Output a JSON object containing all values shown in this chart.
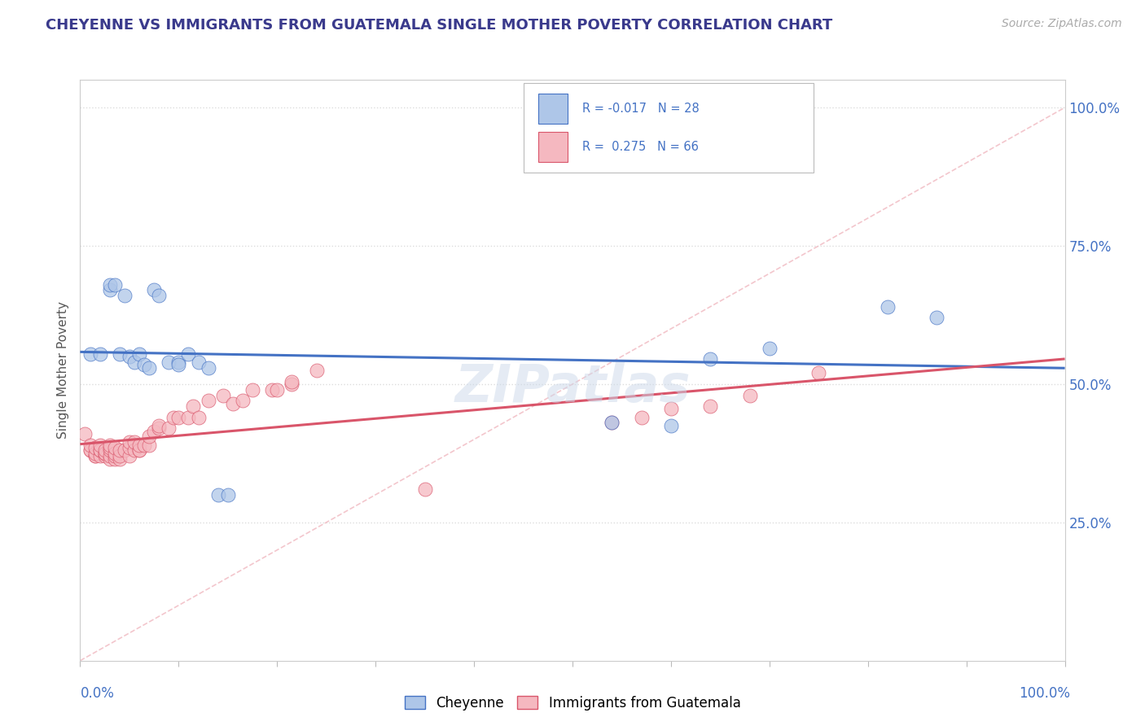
{
  "title": "CHEYENNE VS IMMIGRANTS FROM GUATEMALA SINGLE MOTHER POVERTY CORRELATION CHART",
  "source_text": "Source: ZipAtlas.com",
  "ylabel": "Single Mother Poverty",
  "legend_label1": "Cheyenne",
  "legend_label2": "Immigrants from Guatemala",
  "R1": -0.017,
  "N1": 28,
  "R2": 0.275,
  "N2": 66,
  "color1": "#aec6e8",
  "color2": "#f5b8c0",
  "line1_color": "#4472c4",
  "line2_color": "#d9556a",
  "diag_color": "#f0b8c0",
  "background_color": "#ffffff",
  "grid_color": "#dddddd",
  "watermark": "ZIPatlas",
  "title_color": "#3a3a8c",
  "axis_label_color": "#4472c4",
  "cheyenne_x": [
    0.01,
    0.02,
    0.03,
    0.03,
    0.035,
    0.04,
    0.045,
    0.05,
    0.055,
    0.06,
    0.065,
    0.07,
    0.075,
    0.08,
    0.09,
    0.1,
    0.1,
    0.11,
    0.12,
    0.13,
    0.14,
    0.15,
    0.54,
    0.6,
    0.64,
    0.7,
    0.82,
    0.87
  ],
  "cheyenne_y": [
    0.555,
    0.555,
    0.67,
    0.68,
    0.68,
    0.555,
    0.66,
    0.55,
    0.54,
    0.555,
    0.535,
    0.53,
    0.67,
    0.66,
    0.54,
    0.54,
    0.535,
    0.555,
    0.54,
    0.53,
    0.3,
    0.3,
    0.43,
    0.425,
    0.545,
    0.565,
    0.64,
    0.62
  ],
  "guatemala_x": [
    0.005,
    0.01,
    0.01,
    0.01,
    0.015,
    0.015,
    0.015,
    0.015,
    0.02,
    0.02,
    0.02,
    0.02,
    0.025,
    0.025,
    0.025,
    0.025,
    0.03,
    0.03,
    0.03,
    0.03,
    0.03,
    0.035,
    0.035,
    0.035,
    0.035,
    0.04,
    0.04,
    0.04,
    0.045,
    0.05,
    0.05,
    0.05,
    0.055,
    0.055,
    0.06,
    0.06,
    0.06,
    0.065,
    0.07,
    0.07,
    0.075,
    0.08,
    0.08,
    0.09,
    0.095,
    0.1,
    0.11,
    0.115,
    0.12,
    0.13,
    0.145,
    0.155,
    0.165,
    0.175,
    0.195,
    0.2,
    0.215,
    0.215,
    0.24,
    0.35,
    0.54,
    0.57,
    0.6,
    0.64,
    0.68,
    0.75
  ],
  "guatemala_y": [
    0.41,
    0.38,
    0.38,
    0.39,
    0.37,
    0.37,
    0.375,
    0.385,
    0.37,
    0.38,
    0.38,
    0.39,
    0.37,
    0.375,
    0.375,
    0.38,
    0.365,
    0.37,
    0.38,
    0.385,
    0.39,
    0.365,
    0.37,
    0.375,
    0.385,
    0.365,
    0.37,
    0.38,
    0.38,
    0.37,
    0.385,
    0.395,
    0.38,
    0.395,
    0.38,
    0.38,
    0.39,
    0.39,
    0.39,
    0.405,
    0.415,
    0.42,
    0.425,
    0.42,
    0.44,
    0.44,
    0.44,
    0.46,
    0.44,
    0.47,
    0.48,
    0.465,
    0.47,
    0.49,
    0.49,
    0.49,
    0.5,
    0.505,
    0.525,
    0.31,
    0.43,
    0.44,
    0.455,
    0.46,
    0.48,
    0.52
  ],
  "xlim": [
    0.0,
    1.0
  ],
  "ylim": [
    0.0,
    1.05
  ],
  "ytick_positions": [
    0.25,
    0.5,
    0.75,
    1.0
  ],
  "ytick_labels": [
    "25.0%",
    "50.0%",
    "75.0%",
    "100.0%"
  ],
  "xtick_positions": [
    0.0,
    0.1,
    0.2,
    0.3,
    0.4,
    0.5,
    0.6,
    0.7,
    0.8,
    0.9,
    1.0
  ],
  "legend_R1_text": "R = -0.017   N = 28",
  "legend_R2_text": "R =  0.275   N = 66"
}
